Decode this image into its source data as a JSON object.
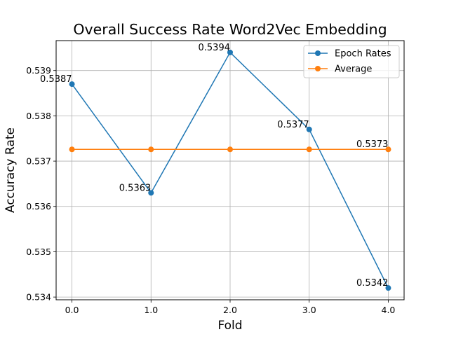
{
  "chart_data": {
    "type": "line",
    "title": "Overall Success Rate Word2Vec Embedding",
    "xlabel": "Fold",
    "ylabel": "Accuracy Rate",
    "x": [
      0.0,
      1.0,
      2.0,
      3.0,
      4.0
    ],
    "x_tick_labels": [
      "0.0",
      "1.0",
      "2.0",
      "3.0",
      "4.0"
    ],
    "y_ticks": [
      0.534,
      0.535,
      0.536,
      0.537,
      0.538,
      0.539
    ],
    "y_tick_labels": [
      "0.534",
      "0.535",
      "0.536",
      "0.537",
      "0.538",
      "0.539"
    ],
    "xlim": [
      -0.2,
      4.2
    ],
    "ylim": [
      0.53394,
      0.53966
    ],
    "grid": true,
    "legend_position": "top-right",
    "series": [
      {
        "name": "Epoch Rates",
        "color": "#1f77b4",
        "values": [
          0.5387,
          0.5363,
          0.5394,
          0.5377,
          0.5342
        ],
        "labels": [
          "0.5387",
          "0.5363",
          "0.5394",
          "0.5377",
          "0.5342"
        ]
      },
      {
        "name": "Average",
        "color": "#ff7f0e",
        "values": [
          0.53726,
          0.53726,
          0.53726,
          0.53726,
          0.53726
        ],
        "end_label": "0.5373"
      }
    ]
  }
}
